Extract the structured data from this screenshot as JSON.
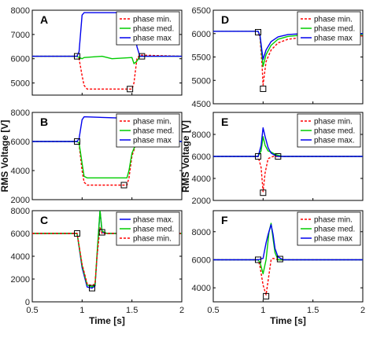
{
  "chart_data": [
    {
      "type": "line",
      "panel_letter": "A",
      "xlim": [
        0.5,
        2.0
      ],
      "ylim": [
        4500,
        8000
      ],
      "yticks": [
        5000,
        6000,
        7000,
        8000
      ],
      "xticks": [],
      "ylabel": "",
      "xlabel": "",
      "legend": [
        "phase min.",
        "phase med.",
        "phase max"
      ],
      "legend_position": "top-right",
      "series": [
        {
          "name": "phase min.",
          "color": "#ff0000",
          "dash": "3,2",
          "x": [
            0.5,
            0.95,
            0.97,
            1.0,
            1.02,
            1.05,
            1.5,
            1.52,
            1.55,
            1.58,
            2.0
          ],
          "y": [
            6100,
            6100,
            6000,
            5300,
            4900,
            4750,
            4750,
            5000,
            6000,
            6150,
            6100
          ]
        },
        {
          "name": "phase med.",
          "color": "#00cc00",
          "dash": "",
          "x": [
            0.5,
            0.95,
            0.97,
            1.0,
            1.02,
            1.2,
            1.3,
            1.5,
            1.52,
            1.55,
            1.58,
            2.0
          ],
          "y": [
            6100,
            6100,
            6050,
            6000,
            6050,
            6100,
            6000,
            6050,
            5800,
            5900,
            6100,
            6100
          ]
        },
        {
          "name": "phase max",
          "color": "#0000ee",
          "dash": "",
          "x": [
            0.5,
            0.95,
            0.97,
            1.0,
            1.02,
            1.5,
            1.52,
            1.55,
            1.58,
            2.0
          ],
          "y": [
            6100,
            6100,
            6300,
            7800,
            7900,
            7900,
            7500,
            6500,
            6100,
            6100
          ]
        }
      ],
      "markers": [
        {
          "x": 0.95,
          "y": 6100
        },
        {
          "x": 1.48,
          "y": 4750
        },
        {
          "x": 1.6,
          "y": 6100
        }
      ]
    },
    {
      "type": "line",
      "panel_letter": "B",
      "xlim": [
        0.5,
        2.0
      ],
      "ylim": [
        2000,
        8000
      ],
      "yticks": [
        2000,
        4000,
        6000,
        8000
      ],
      "xticks": [],
      "ylabel": "RMS Voltage [V]",
      "xlabel": "",
      "legend": [
        "phase min.",
        "phase med.",
        "phase max"
      ],
      "legend_position": "top-right",
      "series": [
        {
          "name": "phase min.",
          "color": "#ff0000",
          "dash": "3,2",
          "x": [
            0.5,
            0.95,
            0.97,
            1.0,
            1.02,
            1.05,
            1.45,
            1.47,
            1.5,
            1.55,
            2.0
          ],
          "y": [
            6000,
            6000,
            5800,
            4000,
            3200,
            3000,
            3000,
            3500,
            5000,
            6000,
            6000
          ]
        },
        {
          "name": "phase med.",
          "color": "#00cc00",
          "dash": "",
          "x": [
            0.5,
            0.95,
            0.97,
            1.0,
            1.02,
            1.05,
            1.45,
            1.47,
            1.5,
            1.55,
            2.0
          ],
          "y": [
            6000,
            6000,
            5900,
            4500,
            3600,
            3500,
            3500,
            4000,
            5200,
            6000,
            6000
          ]
        },
        {
          "name": "phase max",
          "color": "#0000ee",
          "dash": "",
          "x": [
            0.5,
            0.95,
            0.97,
            1.0,
            1.02,
            1.45,
            1.47,
            1.5,
            1.55,
            2.0
          ],
          "y": [
            6000,
            6000,
            6200,
            7500,
            7700,
            7600,
            7000,
            6300,
            6000,
            6000
          ]
        }
      ],
      "markers": [
        {
          "x": 0.95,
          "y": 6000
        },
        {
          "x": 1.42,
          "y": 3000
        },
        {
          "x": 1.58,
          "y": 6000
        }
      ]
    },
    {
      "type": "line",
      "panel_letter": "C",
      "xlim": [
        0.5,
        2.0
      ],
      "ylim": [
        0,
        8000
      ],
      "yticks": [
        0,
        2000,
        4000,
        6000,
        8000
      ],
      "xticks": [
        0.5,
        1.0,
        1.5,
        2.0
      ],
      "ylabel": "",
      "xlabel": "Time [s]",
      "legend": [
        "phase max.",
        "phase med.",
        "phase min."
      ],
      "legend_position": "top-right",
      "series": [
        {
          "name": "phase max.",
          "color": "#0000ee",
          "dash": "",
          "x": [
            0.5,
            0.95,
            1.0,
            1.05,
            1.1,
            1.13,
            1.15,
            1.18,
            1.2,
            1.25,
            2.0
          ],
          "y": [
            6000,
            6000,
            3000,
            1300,
            1200,
            1400,
            4000,
            8000,
            6100,
            6000,
            6000
          ]
        },
        {
          "name": "phase med.",
          "color": "#00cc00",
          "dash": "",
          "x": [
            0.5,
            0.95,
            1.0,
            1.05,
            1.1,
            1.13,
            1.15,
            1.18,
            1.2,
            1.25,
            2.0
          ],
          "y": [
            6000,
            6000,
            3200,
            1500,
            1300,
            1500,
            4200,
            8000,
            6200,
            6000,
            6000
          ]
        },
        {
          "name": "phase min.",
          "color": "#ff0000",
          "dash": "3,2",
          "x": [
            0.5,
            0.95,
            1.0,
            1.05,
            1.1,
            1.13,
            1.15,
            1.18,
            1.2,
            1.25,
            2.0
          ],
          "y": [
            6000,
            6000,
            3300,
            1600,
            1400,
            1600,
            4000,
            6500,
            6000,
            6000,
            6000
          ]
        }
      ],
      "markers": [
        {
          "x": 0.95,
          "y": 6000
        },
        {
          "x": 1.1,
          "y": 1200
        },
        {
          "x": 1.2,
          "y": 6100
        }
      ]
    },
    {
      "type": "line",
      "panel_letter": "D",
      "xlim": [
        0.5,
        2.0
      ],
      "ylim": [
        4500,
        6500
      ],
      "yticks": [
        4500,
        5000,
        5500,
        6000,
        6500
      ],
      "xticks": [],
      "ylabel": "",
      "xlabel": "",
      "legend": [
        "phase min.",
        "phase med.",
        "phase max"
      ],
      "legend_position": "top-right",
      "series": [
        {
          "name": "phase min.",
          "color": "#ff0000",
          "dash": "3,2",
          "x": [
            0.5,
            0.95,
            0.97,
            0.99,
            1.0,
            1.03,
            1.08,
            1.15,
            1.25,
            1.4,
            1.6,
            2.0
          ],
          "y": [
            6050,
            6050,
            5900,
            5300,
            4900,
            5400,
            5650,
            5800,
            5880,
            5920,
            5950,
            5950
          ]
        },
        {
          "name": "phase med.",
          "color": "#00cc00",
          "dash": "",
          "x": [
            0.5,
            0.95,
            0.97,
            0.99,
            1.0,
            1.03,
            1.08,
            1.15,
            1.25,
            1.4,
            1.6,
            2.0
          ],
          "y": [
            6050,
            6050,
            5950,
            5500,
            5300,
            5550,
            5750,
            5880,
            5940,
            5970,
            5980,
            5980
          ]
        },
        {
          "name": "phase max",
          "color": "#0000ee",
          "dash": "",
          "x": [
            0.5,
            0.95,
            0.97,
            0.99,
            1.0,
            1.03,
            1.08,
            1.15,
            1.25,
            1.4,
            1.6,
            2.0
          ],
          "y": [
            6050,
            6050,
            5950,
            5600,
            5450,
            5650,
            5830,
            5930,
            5980,
            6000,
            6000,
            6000
          ]
        }
      ],
      "markers": [
        {
          "x": 0.95,
          "y": 6030
        },
        {
          "x": 1.0,
          "y": 4820
        },
        {
          "x": 1.4,
          "y": 5990
        }
      ]
    },
    {
      "type": "line",
      "panel_letter": "E",
      "xlim": [
        0.5,
        2.0
      ],
      "ylim": [
        2000,
        10000
      ],
      "yticks": [
        2000,
        4000,
        6000,
        8000
      ],
      "xticks": [],
      "ylabel": "RMS Voltage [V]",
      "xlabel": "",
      "legend": [
        "phase min.",
        "phase med.",
        "phase max."
      ],
      "legend_position": "top-right",
      "series": [
        {
          "name": "phase min.",
          "color": "#ff0000",
          "dash": "3,2",
          "x": [
            0.5,
            0.95,
            0.98,
            1.0,
            1.02,
            1.05,
            1.1,
            1.15,
            1.2,
            2.0
          ],
          "y": [
            6000,
            6000,
            5000,
            2800,
            4500,
            5800,
            6000,
            6000,
            6000,
            6000
          ]
        },
        {
          "name": "phase med.",
          "color": "#00cc00",
          "dash": "",
          "x": [
            0.5,
            0.95,
            0.98,
            1.0,
            1.02,
            1.05,
            1.08,
            1.12,
            1.15,
            1.2,
            2.0
          ],
          "y": [
            6000,
            6000,
            6500,
            7800,
            7000,
            6500,
            6400,
            6200,
            6100,
            6000,
            6000
          ]
        },
        {
          "name": "phase max.",
          "color": "#0000ee",
          "dash": "",
          "x": [
            0.5,
            0.95,
            0.98,
            1.0,
            1.02,
            1.05,
            1.08,
            1.12,
            1.15,
            1.2,
            2.0
          ],
          "y": [
            6000,
            6000,
            7000,
            8600,
            7800,
            6800,
            6300,
            6100,
            6000,
            6000,
            6000
          ]
        }
      ],
      "markers": [
        {
          "x": 0.95,
          "y": 6000
        },
        {
          "x": 1.0,
          "y": 2700
        },
        {
          "x": 1.15,
          "y": 6000
        }
      ]
    },
    {
      "type": "line",
      "panel_letter": "F",
      "xlim": [
        0.5,
        2.0
      ],
      "ylim": [
        3000,
        9500
      ],
      "yticks": [
        4000,
        6000,
        8000
      ],
      "xticks": [
        0.5,
        1.0,
        1.5,
        2.0
      ],
      "ylabel": "",
      "xlabel": "Time [s]",
      "legend": [
        "phase min.",
        "phase med.",
        "phase max"
      ],
      "legend_position": "top-right",
      "series": [
        {
          "name": "phase min.",
          "color": "#ff0000",
          "dash": "3,2",
          "x": [
            0.5,
            0.95,
            0.97,
            1.0,
            1.03,
            1.05,
            1.08,
            1.1,
            1.15,
            2.0
          ],
          "y": [
            6000,
            6000,
            5500,
            4200,
            3500,
            4500,
            6000,
            6100,
            6000,
            6000
          ]
        },
        {
          "name": "phase med.",
          "color": "#00cc00",
          "dash": "",
          "x": [
            0.5,
            0.95,
            0.97,
            1.0,
            1.03,
            1.06,
            1.08,
            1.1,
            1.12,
            1.15,
            2.0
          ],
          "y": [
            6000,
            6000,
            5800,
            5000,
            6000,
            8000,
            8600,
            7500,
            6500,
            6000,
            6000
          ]
        },
        {
          "name": "phase max",
          "color": "#0000ee",
          "dash": "",
          "x": [
            0.5,
            0.95,
            1.0,
            1.03,
            1.05,
            1.08,
            1.1,
            1.12,
            1.15,
            1.2,
            1.6,
            1.9,
            2.0
          ],
          "y": [
            6000,
            6000,
            6100,
            7200,
            7800,
            8500,
            7800,
            6800,
            6200,
            6000,
            6000,
            6000,
            6000
          ]
        }
      ],
      "markers": [
        {
          "x": 0.95,
          "y": 6000
        },
        {
          "x": 1.03,
          "y": 3400
        },
        {
          "x": 1.17,
          "y": 6050
        }
      ]
    }
  ]
}
